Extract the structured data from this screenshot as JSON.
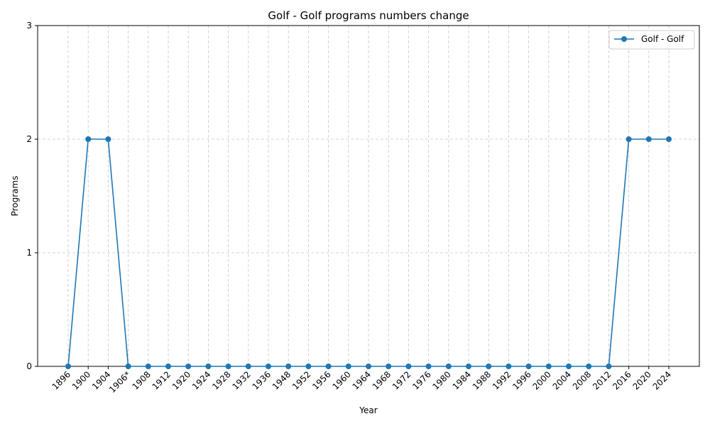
{
  "chart_data": {
    "type": "line",
    "title": "Golf - Golf programs numbers change",
    "xlabel": "Year",
    "ylabel": "Programs",
    "categories": [
      "1896",
      "1900",
      "1904",
      "1906*",
      "1908",
      "1912",
      "1920",
      "1924",
      "1928",
      "1932",
      "1936",
      "1948",
      "1952",
      "1956",
      "1960",
      "1964",
      "1968",
      "1972",
      "1976",
      "1980",
      "1984",
      "1988",
      "1992",
      "1996",
      "2000",
      "2004",
      "2008",
      "2012",
      "2016",
      "2020",
      "2024"
    ],
    "series": [
      {
        "name": "Golf - Golf",
        "values": [
          0,
          2,
          2,
          0,
          0,
          0,
          0,
          0,
          0,
          0,
          0,
          0,
          0,
          0,
          0,
          0,
          0,
          0,
          0,
          0,
          0,
          0,
          0,
          0,
          0,
          0,
          0,
          0,
          2,
          2,
          2
        ]
      }
    ],
    "ylim": [
      0,
      3
    ],
    "yticks": [
      "0",
      "1",
      "2",
      "3"
    ],
    "grid": true,
    "legend_position": "top-right",
    "colors": {
      "series": "#1f77b4",
      "grid": "#b0b0b0"
    }
  }
}
